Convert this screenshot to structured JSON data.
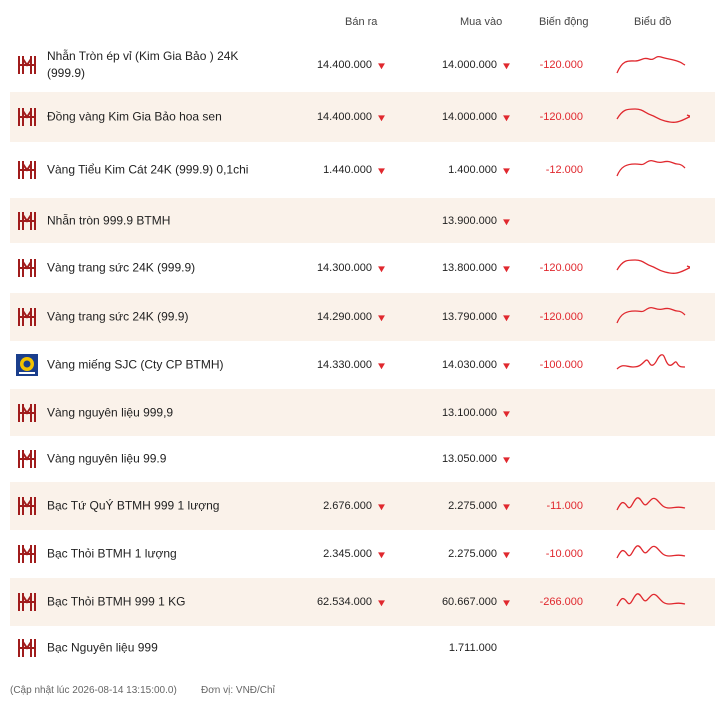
{
  "table": {
    "header": [
      "Bán ra",
      "Mua vào",
      "Biến động",
      "Biểu đồ"
    ],
    "rows": [
      [
        "Nhẫn Tròn ép vỉ (Kim Gia Bảo ) 24K (999.9)",
        "14.400.000",
        "14.000.000",
        "-120.000"
      ],
      [
        "Đồng vàng Kim Gia Bảo hoa sen",
        "14.400.000",
        "14.000.000",
        "-120.000"
      ],
      [
        "Vàng Tiểu Kim Cát 24K (999.9) 0,1chi",
        "1.440.000",
        "1.400.000",
        "-12.000"
      ],
      [
        "Nhẫn tròn 999.9 BTMH",
        null,
        "13.900.000",
        null
      ],
      [
        "Vàng trang sức 24K (999.9)",
        "14.300.000",
        "13.800.000",
        "-120.000"
      ],
      [
        "Vàng trang sức 24K (99.9)",
        "14.290.000",
        "13.790.000",
        "-120.000"
      ],
      [
        "Vàng miếng SJC (Cty CP BTMH)",
        "14.330.000",
        "14.030.000",
        "-100.000"
      ],
      [
        "Vàng nguyên liệu 999,9",
        null,
        "13.100.000",
        null
      ],
      [
        "Vàng nguyên liệu 99.9",
        null,
        "13.050.000",
        null
      ],
      [
        "Bạc Tứ QuÝ BTMH 999 1 lượng",
        "2.676.000",
        "2.275.000",
        "-11.000"
      ],
      [
        "Bạc Thỏi BTMH 1 lượng",
        "2.345.000",
        "2.275.000",
        "-10.000"
      ],
      [
        "Bạc Thỏi BTMH 999 1 KG",
        "62.534.000",
        "60.667.000",
        "-266.000"
      ],
      [
        "Bạc Nguyên liệu 999",
        null,
        "1.711.000",
        null
      ]
    ]
  },
  "footer": {
    "updated": "(Cập nhật lúc 2026-08-14 13:15:00.0)",
    "unit": "Đơn vị: VNĐ/Chỉ"
  }
}
